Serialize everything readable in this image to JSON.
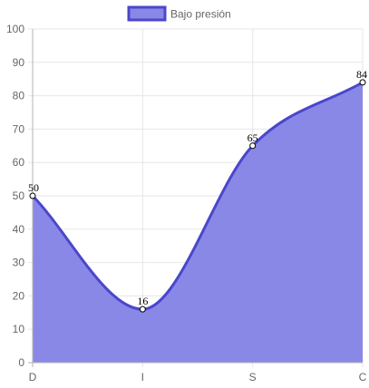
{
  "chart_data": {
    "type": "area",
    "categories": [
      "D",
      "I",
      "S",
      "C"
    ],
    "series": [
      {
        "name": "Bajo presión",
        "values": [
          50,
          16,
          65,
          84
        ]
      }
    ],
    "ylim": [
      0,
      100
    ],
    "yticks": [
      0,
      10,
      20,
      30,
      40,
      50,
      60,
      70,
      80,
      90,
      100
    ],
    "grid": true,
    "legend": "top",
    "data_labels": true,
    "colors": {
      "line": "#4a47cc",
      "fill": "#8a88e6",
      "point_fill": "#ffffff",
      "grid": "#e6e6e6",
      "axis": "#b3b3b3",
      "tick_text": "#666666",
      "data_label": "#000000"
    }
  }
}
